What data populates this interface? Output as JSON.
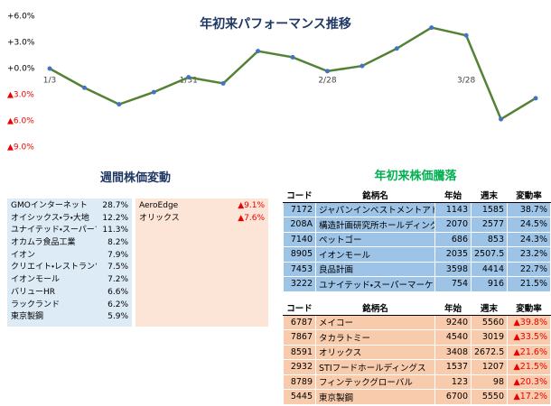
{
  "chart_data": {
    "type": "line",
    "title": "年初来パフォーマンス推移",
    "categories": [
      "1/3",
      null,
      null,
      null,
      "1/31",
      null,
      null,
      null,
      "2/28",
      null,
      null,
      null,
      "3/28",
      null,
      null
    ],
    "values": [
      0,
      -2.2,
      -4.1,
      -2.7,
      -1.0,
      -1.7,
      2.0,
      1.3,
      -0.3,
      0.3,
      2.3,
      4.7,
      3.8,
      -5.8,
      -3.4
    ],
    "color": "#548235",
    "marker_color": "#4472c4",
    "ylim": [
      -9,
      6
    ],
    "yticks": [
      {
        "value": 6,
        "label": "+6.0%"
      },
      {
        "value": 3,
        "label": "+3.0%"
      },
      {
        "value": 0,
        "label": "+0.0%"
      },
      {
        "value": -3,
        "label": "▲3.0%"
      },
      {
        "value": -6,
        "label": "▲6.0%"
      },
      {
        "value": -9,
        "label": "▲9.0%"
      }
    ],
    "grid": false
  },
  "weekly": {
    "title": "週間株価変動",
    "up": [
      [
        "GMOインターネット",
        "28.7%"
      ],
      [
        "オイシックス・ラ・大地",
        "12.2%"
      ],
      [
        "ユナイテッド・スーパーマ",
        "11.3%"
      ],
      [
        "オカムラ食品工業",
        "8.2%"
      ],
      [
        "イオン",
        "7.9%"
      ],
      [
        "クリエイト・レストランツ",
        "7.5%"
      ],
      [
        "イオンモール",
        "7.2%"
      ],
      [
        "バリューHR",
        "6.6%"
      ],
      [
        "ラックランド",
        "6.2%"
      ],
      [
        "東京製鋼",
        "5.9%"
      ]
    ],
    "down": [
      [
        "AeroEdge",
        "▲9.1%"
      ],
      [
        "オリックス",
        "▲7.6%"
      ]
    ]
  },
  "ytd": {
    "title": "年初来株価騰落",
    "header": [
      "コード",
      "銘柄名",
      "年始",
      "週末",
      "変動率"
    ],
    "gainers": [
      [
        "7172",
        "ジャパンインベストメントアドバイザー",
        "1143",
        "1585",
        "38.7%"
      ],
      [
        "208A",
        "構造計画研究所ホールディングス",
        "2070",
        "2577",
        "24.5%"
      ],
      [
        "7140",
        "ペットゴー",
        "686",
        "853",
        "24.3%"
      ],
      [
        "8905",
        "イオンモール",
        "2035",
        "2507.5",
        "23.2%"
      ],
      [
        "7453",
        "良品計画",
        "3598",
        "4414",
        "22.7%"
      ],
      [
        "3222",
        "ユナイテッド・スーパーマーケット・ホールディングス",
        "754",
        "916",
        "21.5%"
      ]
    ],
    "losers": [
      [
        "6787",
        "メイコー",
        "9240",
        "5560",
        "▲39.8%"
      ],
      [
        "7867",
        "タカラトミー",
        "4540",
        "3019",
        "▲33.5%"
      ],
      [
        "8591",
        "オリックス",
        "3408",
        "2672.5",
        "▲21.6%"
      ],
      [
        "2932",
        "STIフードホールディングス",
        "1537",
        "1207",
        "▲21.5%"
      ],
      [
        "8789",
        "フィンテックグローバル",
        "123",
        "98",
        "▲20.3%"
      ],
      [
        "5445",
        "東京製鋼",
        "6700",
        "5550",
        "▲17.2%"
      ]
    ]
  }
}
